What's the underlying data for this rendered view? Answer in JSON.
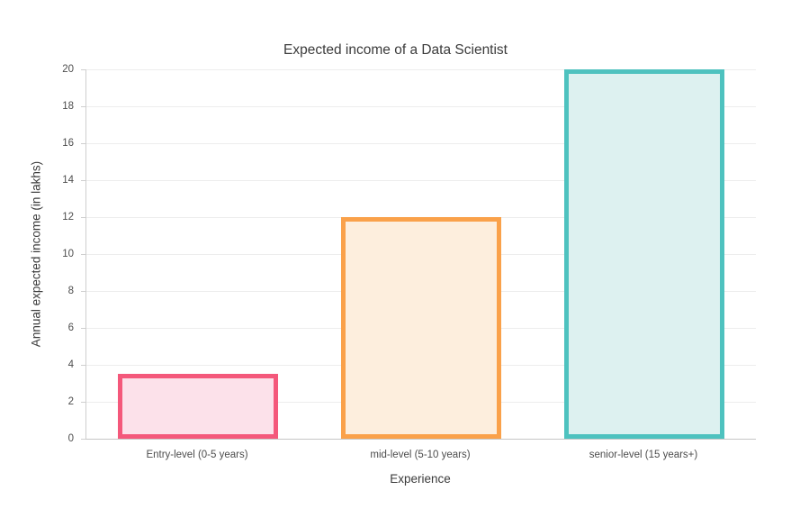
{
  "chart_data": {
    "type": "bar",
    "title": "Expected income of a Data Scientist",
    "xlabel": "Experience",
    "ylabel": "Annual expected income (in lakhs)",
    "categories": [
      "Entry-level (0-5 years)",
      "mid-level (5-10 years)",
      "senior-level (15 years+)"
    ],
    "values": [
      3.5,
      12,
      20
    ],
    "ylim": [
      0,
      20
    ],
    "yticks": [
      0,
      2,
      4,
      6,
      8,
      10,
      12,
      14,
      16,
      18,
      20
    ],
    "grid": "horizontal-only",
    "legend": "none",
    "bar_styles": [
      {
        "category": "Entry-level (0-5 years)",
        "fill": "#FCE1EA",
        "border": "#F4587B"
      },
      {
        "category": "mid-level (5-10 years)",
        "fill": "#FDEEDD",
        "border": "#FAA14A"
      },
      {
        "category": "senior-level (15 years+)",
        "fill": "#DDF1F0",
        "border": "#4EC2BF"
      }
    ],
    "colors": {
      "gridline": "#EDEDED",
      "axis_line": "#CFCFCF",
      "title_text": "#3B3B3B",
      "tick_text": "#4D4D4D",
      "background": "#FFFFFF"
    }
  }
}
